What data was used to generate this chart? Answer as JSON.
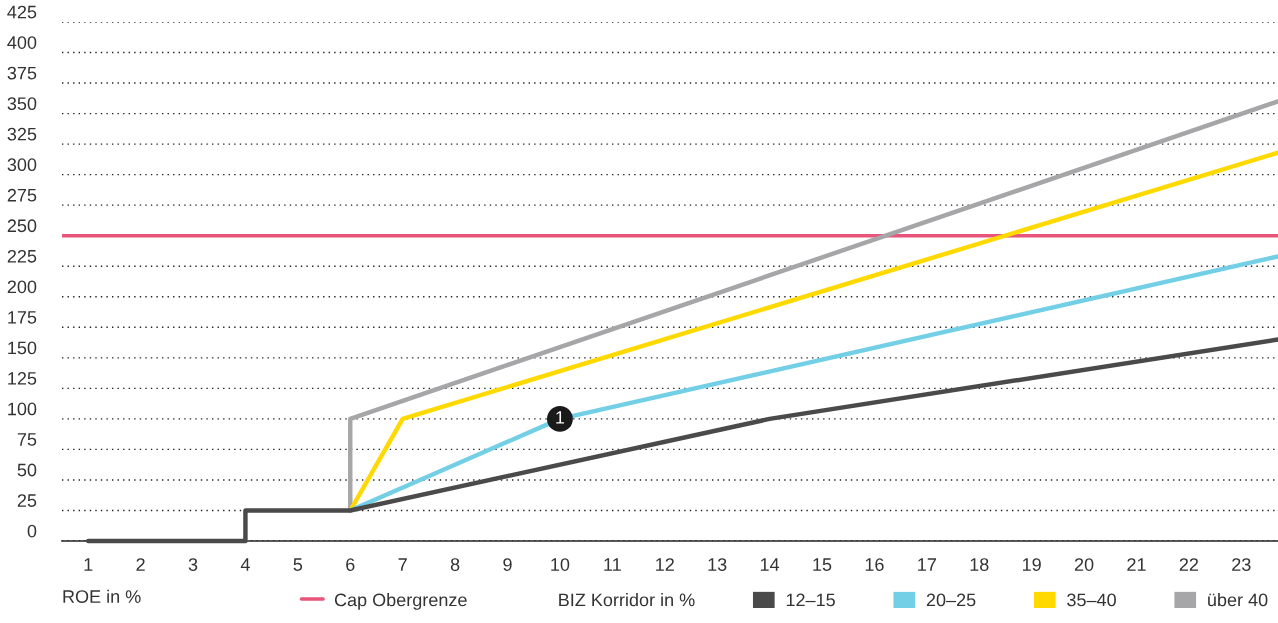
{
  "chart_data": {
    "type": "line",
    "xlabel": "ROE in %",
    "legend_title": "BIZ Korridor in %",
    "xlim": [
      0.5,
      23.7
    ],
    "xticks": [
      1,
      2,
      3,
      4,
      5,
      6,
      7,
      8,
      9,
      10,
      11,
      12,
      13,
      14,
      15,
      16,
      17,
      18,
      19,
      20,
      21,
      22,
      23
    ],
    "ylim": [
      0,
      425
    ],
    "yticks": [
      0,
      25,
      50,
      75,
      100,
      125,
      150,
      175,
      200,
      225,
      250,
      275,
      300,
      325,
      350,
      375,
      400,
      425
    ],
    "grid": "y",
    "legend": "bottom",
    "line_style": "solid",
    "marker": "none",
    "ref_lines": [
      {
        "axis": "y",
        "value": 250,
        "label": "Cap Obergrenze",
        "color": "#e8547a"
      }
    ],
    "annotations": [
      {
        "text": "1",
        "x": 10,
        "y": 100
      }
    ],
    "series": [
      {
        "name": "12–15",
        "color": "#4a4a4a",
        "x": [
          1,
          4,
          4,
          6,
          14,
          23.7
        ],
        "values": [
          0,
          0,
          25,
          25,
          100,
          165
        ]
      },
      {
        "name": "20–25",
        "color": "#73cfe6",
        "x": [
          6,
          10,
          23.7
        ],
        "values": [
          25,
          100,
          233
        ]
      },
      {
        "name": "35–40",
        "color": "#ffd900",
        "x": [
          6,
          7,
          23.7
        ],
        "values": [
          25,
          100,
          318
        ]
      },
      {
        "name": "über 40",
        "color": "#a6a6a8",
        "x": [
          6,
          6,
          23.7
        ],
        "values": [
          25,
          100,
          360
        ]
      }
    ]
  }
}
